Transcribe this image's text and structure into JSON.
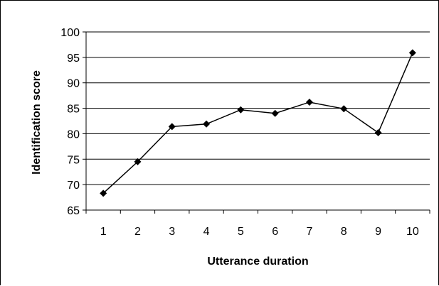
{
  "chart_data": {
    "type": "line",
    "title": "",
    "xlabel": "Utterance duration",
    "ylabel": "Identification score",
    "categories": [
      "1",
      "2",
      "3",
      "4",
      "5",
      "6",
      "7",
      "8",
      "9",
      "10"
    ],
    "series": [
      {
        "values": [
          68.3,
          74.5,
          81.4,
          81.9,
          84.7,
          84.0,
          86.2,
          84.9,
          80.2,
          95.9
        ],
        "color": "#000000",
        "marker": "diamond"
      }
    ],
    "yticks": [
      "65",
      "70",
      "75",
      "80",
      "85",
      "90",
      "95",
      "100"
    ],
    "ylim": [
      65,
      100
    ],
    "grid": true,
    "legend": "none"
  }
}
